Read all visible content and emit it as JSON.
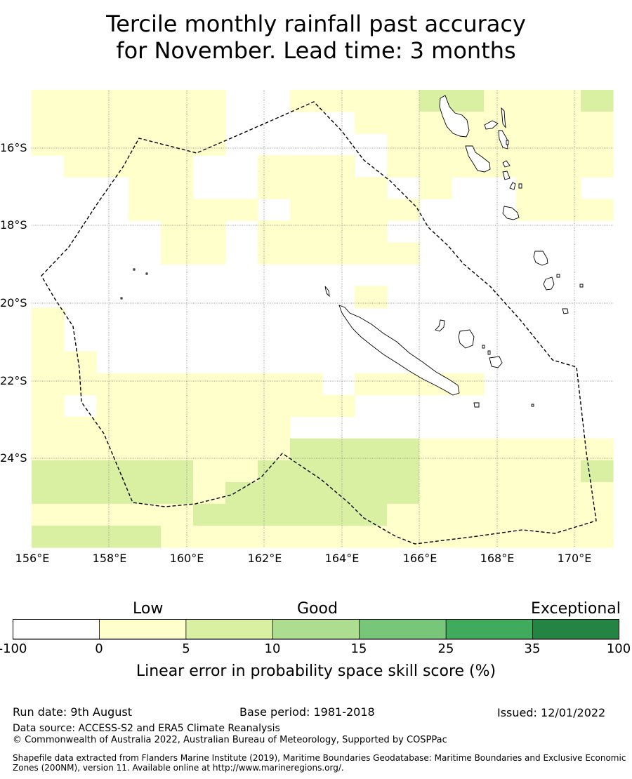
{
  "title": {
    "line1": "Tercile monthly rainfall past accuracy",
    "line2": "for November. Lead time: 3 months"
  },
  "map": {
    "latitude_labels": [
      "16°S",
      "18°S",
      "20°S",
      "22°S",
      "24°S"
    ],
    "longitude_labels": [
      "156°E",
      "158°E",
      "160°E",
      "162°E",
      "164°E",
      "166°E",
      "168°E",
      "170°E"
    ],
    "gridlines": true,
    "boundary_style": "dashed",
    "skill_grid_note": ""
  },
  "legend": {
    "categories": [
      "Low",
      "Good",
      "Exceptional"
    ],
    "ticks": [
      "-100",
      "0",
      "5",
      "10",
      "15",
      "25",
      "35",
      "100"
    ],
    "colors": [
      "#ffffff",
      "#ffffcc",
      "#d9f0a3",
      "#addd8e",
      "#78c679",
      "#41ab5d",
      "#238443"
    ],
    "axis_label": "Linear error in probability space skill score (%)"
  },
  "footer": {
    "run_date": "Run date: 9th August",
    "base_period": "Base period: 1981-2018",
    "issued": "Issued: 12/01/2022",
    "data_source": "Data source: ACCESS-S2 and ERA5 Climate Reanalysis",
    "copyright": "© Commonwealth of Australia 2022, Australian Bureau of Meteorology, Supported by COSPPac",
    "shapefile_line1": "Shapefile data extracted from Flanders Marine Institute (2019), Maritime Boundaries Geodatabase: Maritime Boundaries and Exclusive Economic",
    "shapefile_line2": "Zones (200NM), version 11. Available online at http://www.marineregions.org/."
  }
}
